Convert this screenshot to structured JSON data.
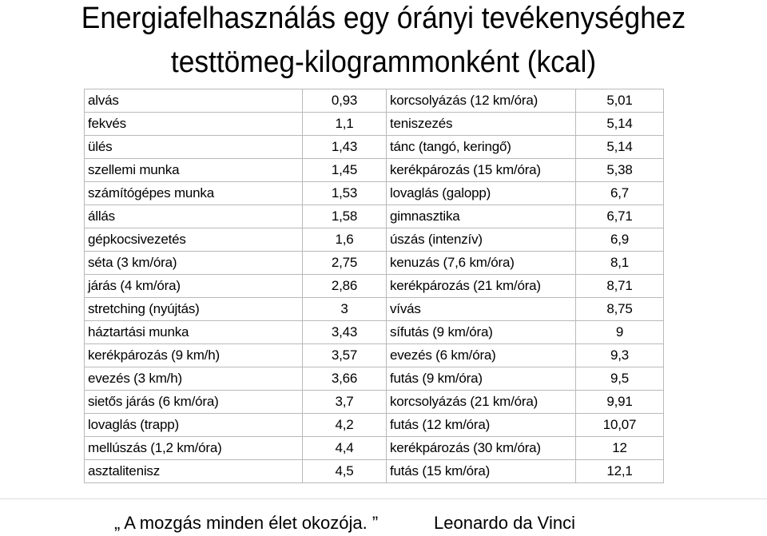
{
  "title": {
    "line1": "Energiafelhasználás egy órányi tevékenységhez",
    "line2": "testtömeg-kilogrammonként (kcal)"
  },
  "rows": [
    {
      "activity1": "alvás",
      "value1": "0,93",
      "activity2": "korcsolyázás (12 km/óra)",
      "value2": "5,01"
    },
    {
      "activity1": "fekvés",
      "value1": "1,1",
      "activity2": "teniszezés",
      "value2": "5,14"
    },
    {
      "activity1": "ülés",
      "value1": "1,43",
      "activity2": "tánc (tangó, keringő)",
      "value2": "5,14"
    },
    {
      "activity1": "szellemi munka",
      "value1": "1,45",
      "activity2": "kerékpározás (15 km/óra)",
      "value2": "5,38"
    },
    {
      "activity1": "számítógépes munka",
      "value1": "1,53",
      "activity2": "lovaglás (galopp)",
      "value2": "6,7"
    },
    {
      "activity1": "állás",
      "value1": "1,58",
      "activity2": "gimnasztika",
      "value2": "6,71"
    },
    {
      "activity1": "gépkocsivezetés",
      "value1": "1,6",
      "activity2": "úszás (intenzív)",
      "value2": "6,9"
    },
    {
      "activity1": "séta (3 km/óra)",
      "value1": "2,75",
      "activity2": "kenuzás (7,6 km/óra)",
      "value2": "8,1"
    },
    {
      "activity1": "járás (4 km/óra)",
      "value1": "2,86",
      "activity2": "kerékpározás (21 km/óra)",
      "value2": "8,71"
    },
    {
      "activity1": "stretching (nyújtás)",
      "value1": "3",
      "activity2": "vívás",
      "value2": "8,75"
    },
    {
      "activity1": "háztartási munka",
      "value1": "3,43",
      "activity2": "sífutás (9 km/óra)",
      "value2": "9"
    },
    {
      "activity1": "kerékpározás (9 km/h)",
      "value1": "3,57",
      "activity2": "evezés (6 km/óra)",
      "value2": "9,3"
    },
    {
      "activity1": "evezés (3 km/h)",
      "value1": "3,66",
      "activity2": "futás (9 km/óra)",
      "value2": "9,5"
    },
    {
      "activity1": "sietős járás (6 km/óra)",
      "value1": "3,7",
      "activity2": "korcsolyázás (21 km/óra)",
      "value2": "9,91"
    },
    {
      "activity1": "lovaglás (trapp)",
      "value1": "4,2",
      "activity2": "futás (12 km/óra)",
      "value2": "10,07"
    },
    {
      "activity1": "mellúszás (1,2 km/óra)",
      "value1": "4,4",
      "activity2": "kerékpározás (30 km/óra)",
      "value2": "12"
    },
    {
      "activity1": "asztalitenisz",
      "value1": "4,5",
      "activity2": "futás (15 km/óra)",
      "value2": "12,1"
    }
  ],
  "footer": {
    "quote": "„ A mozgás minden élet okozója. ”",
    "author": "Leonardo da Vinci"
  }
}
